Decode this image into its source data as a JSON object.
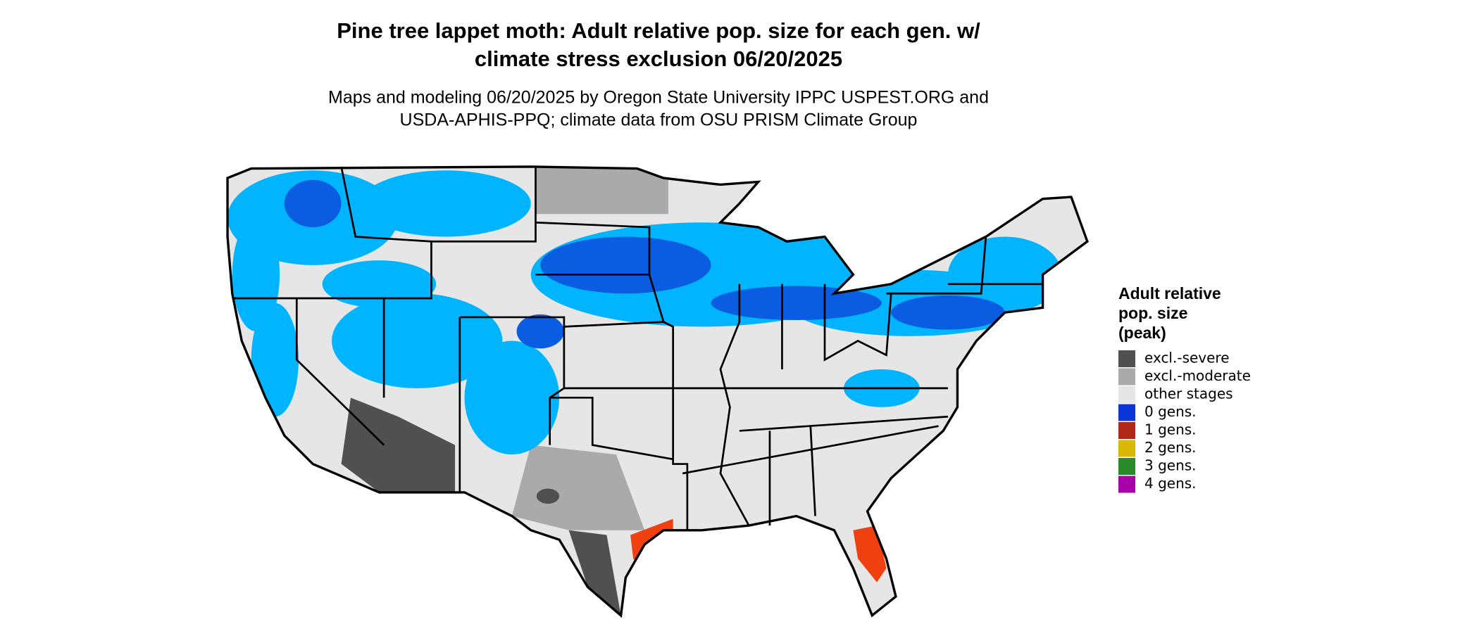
{
  "title": [
    "Pine tree lappet moth: Adult relative pop. size for each gen. w/",
    "climate stress exclusion 06/20/2025"
  ],
  "subtitle": [
    "Maps and modeling 06/20/2025 by Oregon State University IPPC USPEST.ORG and",
    "USDA-APHIS-PPQ; climate data from OSU PRISM Climate Group"
  ],
  "legend": {
    "title": [
      "Adult relative",
      "pop. size",
      "(peak)"
    ],
    "items": [
      {
        "label": "excl.-severe",
        "color": "#505050"
      },
      {
        "label": "excl.-moderate",
        "color": "#aaaaaa"
      },
      {
        "label": "other stages",
        "color": "#e6e6e6"
      },
      {
        "label": "0 gens.",
        "color": "#0a35d8"
      },
      {
        "label": "1 gens.",
        "color": "#b0281a"
      },
      {
        "label": "2 gens.",
        "color": "#d9b800"
      },
      {
        "label": "3 gens.",
        "color": "#2a8a2a"
      },
      {
        "label": "4 gens.",
        "color": "#a800a8"
      }
    ]
  }
}
